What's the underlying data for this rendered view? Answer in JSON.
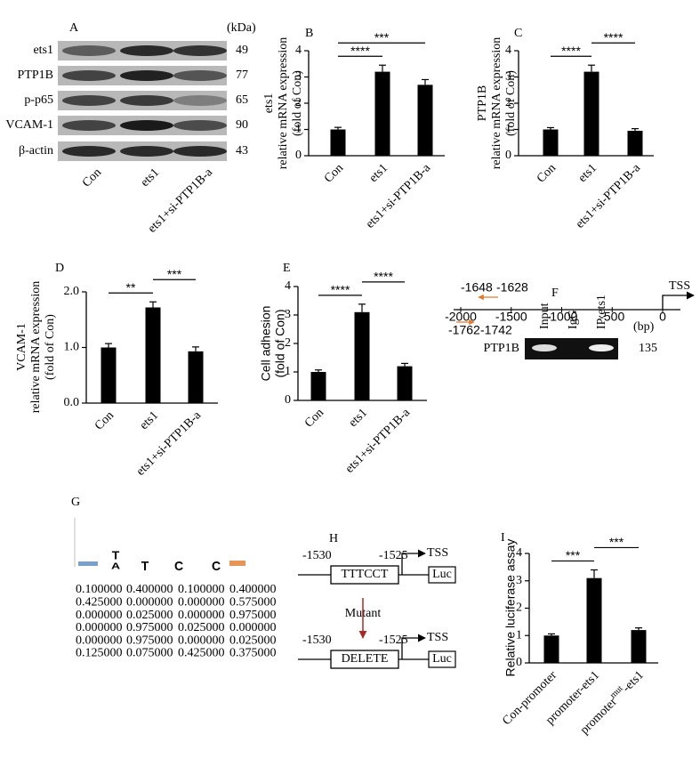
{
  "chart_data": [
    {
      "type": "bar",
      "panel": "B",
      "ylabel": [
        "ets1",
        "relative mRNA expression",
        "(fold of Con)"
      ],
      "categories": [
        "Con",
        "ets1",
        "ets1+si-PTP1B-a"
      ],
      "values": [
        1.0,
        3.2,
        2.7
      ],
      "errors": [
        0.08,
        0.25,
        0.2
      ],
      "color": "#000000",
      "ylim": [
        0,
        4
      ],
      "yticks": [
        0,
        1,
        2,
        3,
        4
      ],
      "annotations": [
        {
          "text": "****",
          "from": 0,
          "to": 1
        },
        {
          "text": "***",
          "from": 0,
          "to": 2
        }
      ]
    },
    {
      "type": "bar",
      "panel": "C",
      "ylabel": [
        "PTP1B",
        "relative mRNA expression",
        "(fold of Con)"
      ],
      "categories": [
        "Con",
        "ets1",
        "ets1+si-PTP1B-a"
      ],
      "values": [
        1.0,
        3.2,
        0.95
      ],
      "errors": [
        0.07,
        0.25,
        0.08
      ],
      "color": "#000000",
      "ylim": [
        0,
        4
      ],
      "yticks": [
        0,
        1,
        2,
        3,
        4
      ],
      "annotations": [
        {
          "text": "****",
          "from": 0,
          "to": 1
        },
        {
          "text": "****",
          "from": 1,
          "to": 2
        }
      ]
    },
    {
      "type": "bar",
      "panel": "D",
      "ylabel": [
        "VCAM-1",
        "relative mRNA expression",
        "(fold of Con)"
      ],
      "categories": [
        "Con",
        "ets1",
        "ets1+si-PTP1B-a"
      ],
      "values": [
        1.0,
        1.72,
        0.93
      ],
      "errors": [
        0.07,
        0.1,
        0.08
      ],
      "color": "#000000",
      "ylim": [
        0,
        2
      ],
      "yticks": [
        {
          "value": 0,
          "label": "0.0"
        },
        {
          "value": 1,
          "label": "1.0"
        },
        {
          "value": 2,
          "label": "2.0"
        }
      ],
      "annotations": [
        {
          "text": "**",
          "from": 0,
          "to": 1
        },
        {
          "text": "***",
          "from": 1,
          "to": 2
        }
      ]
    },
    {
      "type": "bar",
      "panel": "E",
      "ylabel": [
        "Cell adhesion",
        "(fold of Con)"
      ],
      "categories": [
        "Con",
        "ets1",
        "ets1+si-PTP1B-a"
      ],
      "values": [
        1.0,
        3.1,
        1.2
      ],
      "errors": [
        0.07,
        0.28,
        0.1
      ],
      "color": "#000000",
      "ylim": [
        0,
        4
      ],
      "yticks": [
        0,
        1,
        2,
        3,
        4
      ],
      "annotations": [
        {
          "text": "****",
          "from": 0,
          "to": 1
        },
        {
          "text": "****",
          "from": 1,
          "to": 2
        }
      ]
    },
    {
      "type": "bar",
      "panel": "I",
      "ylabel": [
        "Relative luciferase assay"
      ],
      "categories": [
        "Con-promoter",
        "promoter-ets1",
        [
          "promoter",
          "mut",
          "-ets1"
        ]
      ],
      "values": [
        1.0,
        3.1,
        1.2
      ],
      "errors": [
        0.06,
        0.3,
        0.08
      ],
      "color": "#000000",
      "ylim": [
        0,
        4
      ],
      "yticks": [
        0,
        1,
        2,
        3,
        4
      ],
      "annotations": [
        {
          "text": "***",
          "from": 0,
          "to": 1
        },
        {
          "text": "***",
          "from": 1,
          "to": 2
        }
      ]
    }
  ],
  "blot": {
    "panel": "A",
    "unit": "(kDa)",
    "rows": [
      {
        "name": "ets1",
        "kda": 49
      },
      {
        "name": "PTP1B",
        "kda": 77
      },
      {
        "name": "p-p65",
        "kda": 65
      },
      {
        "name": "VCAM-1",
        "kda": 90
      },
      {
        "name": "β-actin",
        "kda": 43
      }
    ],
    "lanes": [
      "Con",
      "ets1",
      "ets1+si-PTP1B-a"
    ]
  },
  "chip": {
    "panel": "F",
    "tss": "TSS",
    "axis_ticks": [
      -2000,
      -1500,
      -1000,
      -500,
      0
    ],
    "primer_reverse": [
      "-1648",
      "-1628"
    ],
    "primer_forward": [
      "-1762",
      "-1742"
    ],
    "gel_lanes": [
      "Input",
      "IgG",
      "IP:ets1"
    ],
    "bp_unit": "(bp)",
    "gel_label": "PTP1B",
    "size": "135"
  },
  "motif": {
    "panel": "G",
    "logo": [
      "T",
      "A",
      "T",
      "C",
      "C"
    ],
    "matrix": [
      [
        "0.100000",
        "0.400000",
        "0.100000",
        "0.400000"
      ],
      [
        "0.425000",
        "0.000000",
        "0.000000",
        "0.575000"
      ],
      [
        "0.000000",
        "0.025000",
        "0.000000",
        "0.975000"
      ],
      [
        "0.000000",
        "0.975000",
        "0.025000",
        "0.000000"
      ],
      [
        "0.000000",
        "0.975000",
        "0.000000",
        "0.025000"
      ],
      [
        "0.125000",
        "0.075000",
        "0.425000",
        "0.375000"
      ]
    ]
  },
  "construct": {
    "panel": "H",
    "start": "-1530",
    "end": "-1525",
    "site": "TTTCCT",
    "tss": "TSS",
    "reporter": "Luc",
    "mutation": "Mutant",
    "mutant_site": "DELETE"
  }
}
